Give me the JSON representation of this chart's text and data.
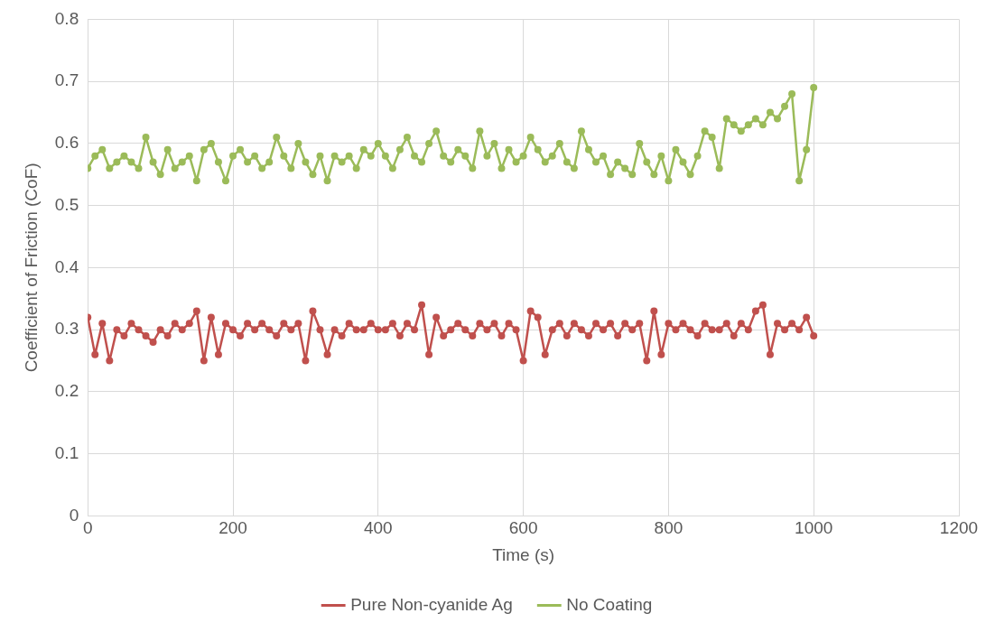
{
  "chart_data": {
    "type": "line",
    "xlabel": "Time (s)",
    "ylabel": "Coefficient of Friction (CoF)",
    "x": [
      0,
      10,
      20,
      30,
      40,
      50,
      60,
      70,
      80,
      90,
      100,
      110,
      120,
      130,
      140,
      150,
      160,
      170,
      180,
      190,
      200,
      210,
      220,
      230,
      240,
      250,
      260,
      270,
      280,
      290,
      300,
      310,
      320,
      330,
      340,
      350,
      360,
      370,
      380,
      390,
      400,
      410,
      420,
      430,
      440,
      450,
      460,
      470,
      480,
      490,
      500,
      510,
      520,
      530,
      540,
      550,
      560,
      570,
      580,
      590,
      600,
      610,
      620,
      630,
      640,
      650,
      660,
      670,
      680,
      690,
      700,
      710,
      720,
      730,
      740,
      750,
      760,
      770,
      780,
      790,
      800,
      810,
      820,
      830,
      840,
      850,
      860,
      870,
      880,
      890,
      900,
      910,
      920,
      930,
      940,
      950,
      960,
      970,
      980,
      990,
      1000
    ],
    "series": [
      {
        "name": "Pure Non-cyanide Ag",
        "color": "#c0504d",
        "values": [
          0.32,
          0.26,
          0.31,
          0.25,
          0.3,
          0.29,
          0.31,
          0.3,
          0.29,
          0.28,
          0.3,
          0.29,
          0.31,
          0.3,
          0.31,
          0.33,
          0.25,
          0.32,
          0.26,
          0.31,
          0.3,
          0.29,
          0.31,
          0.3,
          0.31,
          0.3,
          0.29,
          0.31,
          0.3,
          0.31,
          0.25,
          0.33,
          0.3,
          0.26,
          0.3,
          0.29,
          0.31,
          0.3,
          0.3,
          0.31,
          0.3,
          0.3,
          0.31,
          0.29,
          0.31,
          0.3,
          0.34,
          0.26,
          0.32,
          0.29,
          0.3,
          0.31,
          0.3,
          0.29,
          0.31,
          0.3,
          0.31,
          0.29,
          0.31,
          0.3,
          0.25,
          0.33,
          0.32,
          0.26,
          0.3,
          0.31,
          0.29,
          0.31,
          0.3,
          0.29,
          0.31,
          0.3,
          0.31,
          0.29,
          0.31,
          0.3,
          0.31,
          0.25,
          0.33,
          0.26,
          0.31,
          0.3,
          0.31,
          0.3,
          0.29,
          0.31,
          0.3,
          0.3,
          0.31,
          0.29,
          0.31,
          0.3,
          0.33,
          0.34,
          0.26,
          0.31,
          0.3,
          0.31,
          0.3,
          0.32,
          0.29
        ]
      },
      {
        "name": "No Coating",
        "color": "#9bbb59",
        "values": [
          0.56,
          0.58,
          0.59,
          0.56,
          0.57,
          0.58,
          0.57,
          0.56,
          0.61,
          0.57,
          0.55,
          0.59,
          0.56,
          0.57,
          0.58,
          0.54,
          0.59,
          0.6,
          0.57,
          0.54,
          0.58,
          0.59,
          0.57,
          0.58,
          0.56,
          0.57,
          0.61,
          0.58,
          0.56,
          0.6,
          0.57,
          0.55,
          0.58,
          0.54,
          0.58,
          0.57,
          0.58,
          0.56,
          0.59,
          0.58,
          0.6,
          0.58,
          0.56,
          0.59,
          0.61,
          0.58,
          0.57,
          0.6,
          0.62,
          0.58,
          0.57,
          0.59,
          0.58,
          0.56,
          0.62,
          0.58,
          0.6,
          0.56,
          0.59,
          0.57,
          0.58,
          0.61,
          0.59,
          0.57,
          0.58,
          0.6,
          0.57,
          0.56,
          0.62,
          0.59,
          0.57,
          0.58,
          0.55,
          0.57,
          0.56,
          0.55,
          0.6,
          0.57,
          0.55,
          0.58,
          0.54,
          0.59,
          0.57,
          0.55,
          0.58,
          0.62,
          0.61,
          0.56,
          0.64,
          0.63,
          0.62,
          0.63,
          0.64,
          0.63,
          0.65,
          0.64,
          0.66,
          0.68,
          0.54,
          0.59,
          0.69
        ]
      }
    ],
    "xlim": [
      0,
      1200
    ],
    "xticks": [
      0,
      200,
      400,
      600,
      800,
      1000,
      1200
    ],
    "ylim": [
      0,
      0.8
    ],
    "yticks": [
      0,
      0.1,
      0.2,
      0.3,
      0.4,
      0.5,
      0.6,
      0.7,
      0.8
    ],
    "grid": true,
    "legend": "bottom",
    "marker": "circle",
    "line_style": "solid"
  }
}
